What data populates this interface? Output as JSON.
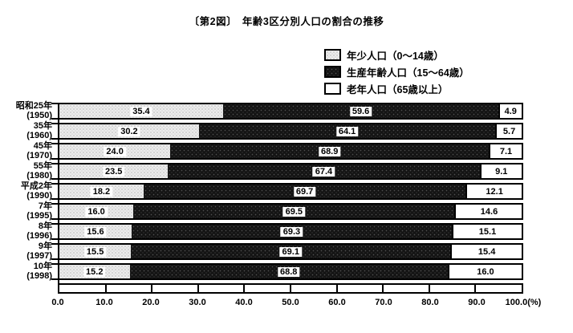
{
  "title": "〔第2図〕　年齢3区分別人口の割合の推移",
  "legend": {
    "items": [
      {
        "label": "年少人口（0〜14歳）",
        "swatch": "light-dots"
      },
      {
        "label": "生産年齢人口（15〜64歳）",
        "swatch": "dark-dots"
      },
      {
        "label": "老年人口（65歳以上）",
        "swatch": "white"
      }
    ]
  },
  "colors": {
    "young_segment": "#ececec",
    "working_segment": "#141414",
    "old_segment": "#ffffff",
    "border": "#000000",
    "background": "#ffffff"
  },
  "chart_data": {
    "type": "bar",
    "orientation": "horizontal",
    "stacked": true,
    "unit": "%",
    "title": "〔第2図〕　年齢3区分別人口の割合の推移",
    "categories": [
      {
        "era": "昭和25年",
        "year": "(1950)"
      },
      {
        "era": "35年",
        "year": "(1960)"
      },
      {
        "era": "45年",
        "year": "(1970)"
      },
      {
        "era": "55年",
        "year": "(1980)"
      },
      {
        "era": "平成2年",
        "year": "(1990)"
      },
      {
        "era": "7年",
        "year": "(1995)"
      },
      {
        "era": "8年",
        "year": "(1996)"
      },
      {
        "era": "9年",
        "year": "(1997)"
      },
      {
        "era": "10年",
        "year": "(1998)"
      }
    ],
    "series": [
      {
        "name": "年少人口（0〜14歳）",
        "pattern": "light-dots",
        "values": [
          35.4,
          30.2,
          24.0,
          23.5,
          18.2,
          16.0,
          15.6,
          15.5,
          15.2
        ]
      },
      {
        "name": "生産年齢人口（15〜64歳）",
        "pattern": "dark-dots",
        "values": [
          59.6,
          64.1,
          68.9,
          67.4,
          69.7,
          69.5,
          69.3,
          69.1,
          68.8
        ]
      },
      {
        "name": "老年人口（65歳以上）",
        "pattern": "white",
        "values": [
          4.9,
          5.7,
          7.1,
          9.1,
          12.1,
          14.6,
          15.1,
          15.4,
          16.0
        ]
      }
    ],
    "x_ticks": [
      "0.0",
      "10.0",
      "20.0",
      "30.0",
      "40.0",
      "50.0",
      "60.0",
      "70.0",
      "80.0",
      "90.0",
      "100.0(%)"
    ],
    "xlim": [
      0,
      100
    ],
    "grid": false,
    "legend_position": "top-right"
  }
}
